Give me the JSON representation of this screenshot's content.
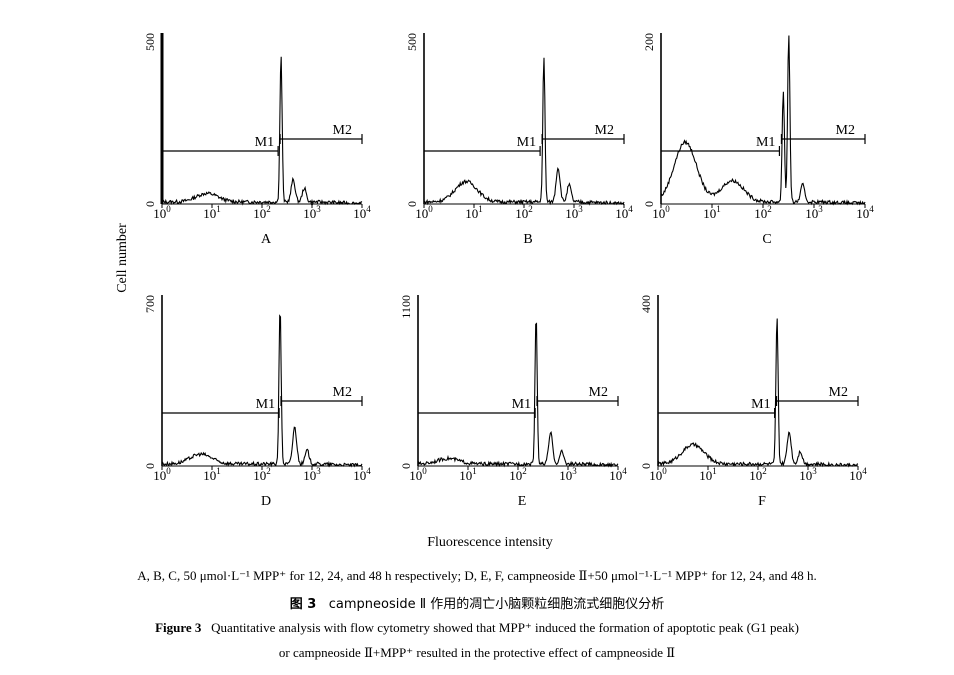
{
  "figure": {
    "ylabel": "Cell number",
    "xlabel": "Fluorescence intensity"
  },
  "chart_data": [
    {
      "panel": "A",
      "type": "histogram",
      "xscale": "log",
      "xlim": [
        1,
        10000
      ],
      "ylim": [
        0,
        500
      ],
      "ytick_labels": [
        "0",
        "500"
      ],
      "markers": [
        {
          "label": "M1",
          "range": [
            1,
            210
          ]
        },
        {
          "label": "M2",
          "range": [
            230,
            10000
          ]
        }
      ],
      "series": [
        {
          "peaks": [
            [
              8,
              25
            ],
            [
              240,
              430
            ],
            [
              420,
              65
            ],
            [
              700,
              40
            ]
          ]
        }
      ]
    },
    {
      "panel": "B",
      "type": "histogram",
      "xscale": "log",
      "xlim": [
        1,
        10000
      ],
      "ylim": [
        0,
        500
      ],
      "ytick_labels": [
        "0",
        "500"
      ],
      "markers": [
        {
          "label": "M1",
          "range": [
            1,
            210
          ]
        },
        {
          "label": "M2",
          "range": [
            230,
            10000
          ]
        }
      ],
      "series": [
        {
          "peaks": [
            [
              7,
              60
            ],
            [
              250,
              420
            ],
            [
              480,
              100
            ],
            [
              800,
              50
            ]
          ]
        }
      ]
    },
    {
      "panel": "C",
      "type": "histogram",
      "xscale": "log",
      "xlim": [
        1,
        10000
      ],
      "ylim": [
        0,
        200
      ],
      "ytick_labels": [
        "0",
        "200"
      ],
      "markers": [
        {
          "label": "M1",
          "range": [
            1,
            210
          ]
        },
        {
          "label": "M2",
          "range": [
            230,
            10000
          ]
        }
      ],
      "series": [
        {
          "peaks": [
            [
              3,
              70
            ],
            [
              25,
              25
            ],
            [
              250,
              130
            ],
            [
              320,
              195
            ],
            [
              600,
              20
            ]
          ]
        }
      ]
    },
    {
      "panel": "D",
      "type": "histogram",
      "xscale": "log",
      "xlim": [
        1,
        10000
      ],
      "ylim": [
        0,
        700
      ],
      "ytick_labels": [
        "0",
        "700"
      ],
      "markers": [
        {
          "label": "M1",
          "range": [
            1,
            220
          ]
        },
        {
          "label": "M2",
          "range": [
            240,
            10000
          ]
        }
      ],
      "series": [
        {
          "peaks": [
            [
              6,
              40
            ],
            [
              230,
              640
            ],
            [
              450,
              150
            ],
            [
              800,
              55
            ]
          ]
        }
      ]
    },
    {
      "panel": "E",
      "type": "histogram",
      "xscale": "log",
      "xlim": [
        1,
        10000
      ],
      "ylim": [
        0,
        1100
      ],
      "ytick_labels": [
        "0",
        "1100"
      ],
      "markers": [
        {
          "label": "M1",
          "range": [
            1,
            220
          ]
        },
        {
          "label": "M2",
          "range": [
            240,
            10000
          ]
        }
      ],
      "series": [
        {
          "peaks": [
            [
              4,
              35
            ],
            [
              230,
              960
            ],
            [
              450,
              200
            ],
            [
              750,
              80
            ]
          ]
        }
      ]
    },
    {
      "panel": "F",
      "type": "histogram",
      "xscale": "log",
      "xlim": [
        1,
        10000
      ],
      "ylim": [
        0,
        400
      ],
      "ytick_labels": [
        "0",
        "400"
      ],
      "markers": [
        {
          "label": "M1",
          "range": [
            1,
            215
          ]
        },
        {
          "label": "M2",
          "range": [
            235,
            10000
          ]
        }
      ],
      "series": [
        {
          "peaks": [
            [
              5,
              45
            ],
            [
              240,
              345
            ],
            [
              420,
              75
            ],
            [
              700,
              30
            ]
          ]
        }
      ]
    }
  ],
  "captions": {
    "note": "A, B, C, 50 μmol·L⁻¹ MPP⁺ for 12, 24, and 48 h respectively; D, E, F, campneoside Ⅱ+50 μmol⁻¹·L⁻¹ MPP⁺ for 12, 24, and 48 h.",
    "cn_label": "图 3",
    "cn_text": "campneoside Ⅱ 作用的凋亡小脑颗粒细胞流式细胞仪分析",
    "en_label": "Figure 3",
    "en_text1": "Quantitative analysis with flow cytometry showed that MPP⁺ induced the formation of apoptotic peak (G1 peak)",
    "en_text2": "or campneoside Ⅱ+MPP⁺ resulted in the protective effect of campneoside Ⅱ"
  }
}
